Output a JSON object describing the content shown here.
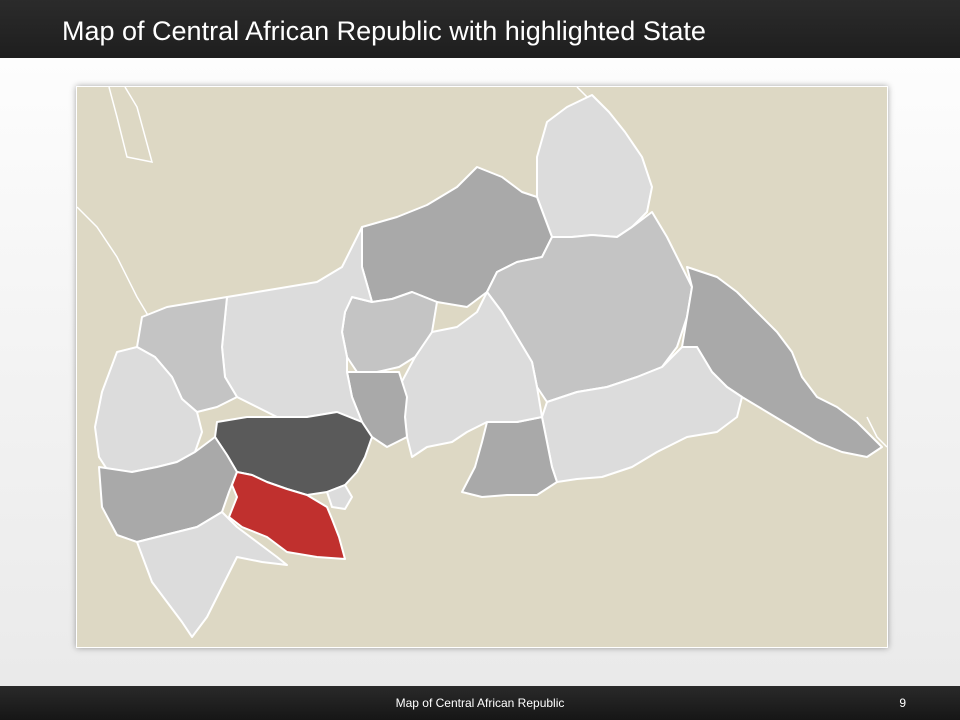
{
  "slide": {
    "title": "Map of Central African Republic with highlighted State",
    "footer": "Map of Central African Republic",
    "page_number": "9"
  },
  "map": {
    "highlighted_color": "#c0302e",
    "ocean_land_color": "#ddd8c4",
    "region_colors": {
      "light": "#dcdcdc",
      "mid_light": "#c4c4c4",
      "mid": "#a9a9a9",
      "dark": "#8f8f8f",
      "darkest": "#5a5a5a"
    }
  }
}
